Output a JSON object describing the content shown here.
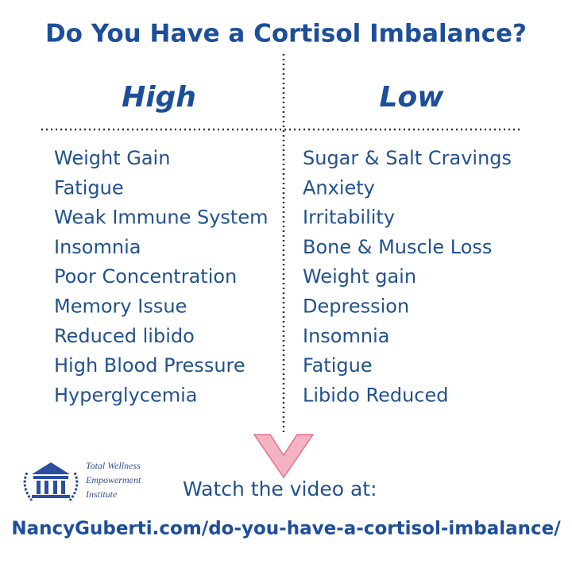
{
  "title": "Do You Have a Cortisol Imbalance?",
  "columns": [
    {
      "heading": "High",
      "items": [
        "Weight Gain",
        "Fatigue",
        "Weak Immune System",
        "Insomnia",
        "Poor Concentration",
        "Memory Issue",
        "Reduced libido",
        "High Blood Pressure",
        "Hyperglycemia"
      ]
    },
    {
      "heading": "Low",
      "items": [
        "Sugar & Salt Cravings",
        "Anxiety",
        "Irritability",
        "Bone & Muscle Loss",
        "Weight gain",
        "Depression",
        "Insomnia",
        "Fatigue",
        "Libido Reduced"
      ]
    }
  ],
  "logo": {
    "lines": [
      "Total Wellness",
      "Empowerment",
      "Institute"
    ]
  },
  "footer": {
    "cta": "Watch the video at:",
    "url": "NancyGuberti.com/do-you-have-a-cortisol-imbalance/"
  }
}
